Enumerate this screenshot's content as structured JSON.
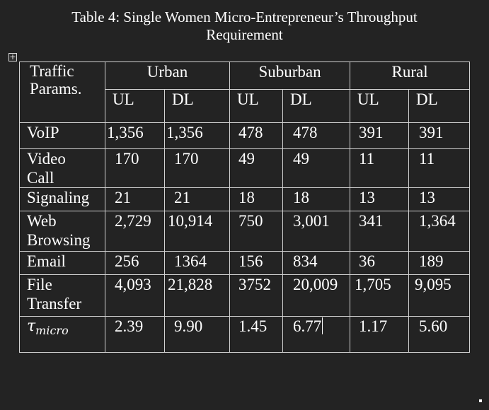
{
  "caption": {
    "line1": "Table 4: Single Women Micro-Entrepreneur’s Throughput",
    "line2": "Requirement"
  },
  "icons": {
    "table_move_handle": "table-move-handle-icon",
    "table_move_handle_glyph": "+"
  },
  "table": {
    "header": {
      "param_label": "Traffic Params.",
      "groups": [
        "Urban",
        "Suburban",
        "Rural"
      ],
      "sub": [
        "UL",
        "DL",
        "UL",
        "DL",
        "UL",
        "DL"
      ]
    },
    "rows": [
      {
        "label": "VoIP",
        "values": [
          "1,356",
          "1,356",
          "478",
          "478",
          "391",
          "391"
        ]
      },
      {
        "label": "Video Call",
        "values": [
          "170",
          "170",
          "49",
          "49",
          "11",
          "11"
        ]
      },
      {
        "label": "Signaling",
        "values": [
          "21",
          "21",
          "18",
          "18",
          "13",
          "13"
        ]
      },
      {
        "label": "Web Browsing",
        "values": [
          "2,729",
          "10,914",
          "750",
          "3,001",
          "341",
          "1,364"
        ]
      },
      {
        "label": "Email",
        "values": [
          "256",
          "1364",
          "156",
          "834",
          "36",
          "189"
        ]
      },
      {
        "label": "File Transfer",
        "values": [
          "4,093",
          "21,828",
          "3752",
          "20,009",
          "1,705",
          "9,095"
        ]
      }
    ],
    "tau": {
      "symbol": "τ",
      "subscript": "micro",
      "values": [
        "2.39",
        "9.90",
        "1.45",
        "6.77",
        "1.17",
        "5.60"
      ]
    }
  }
}
